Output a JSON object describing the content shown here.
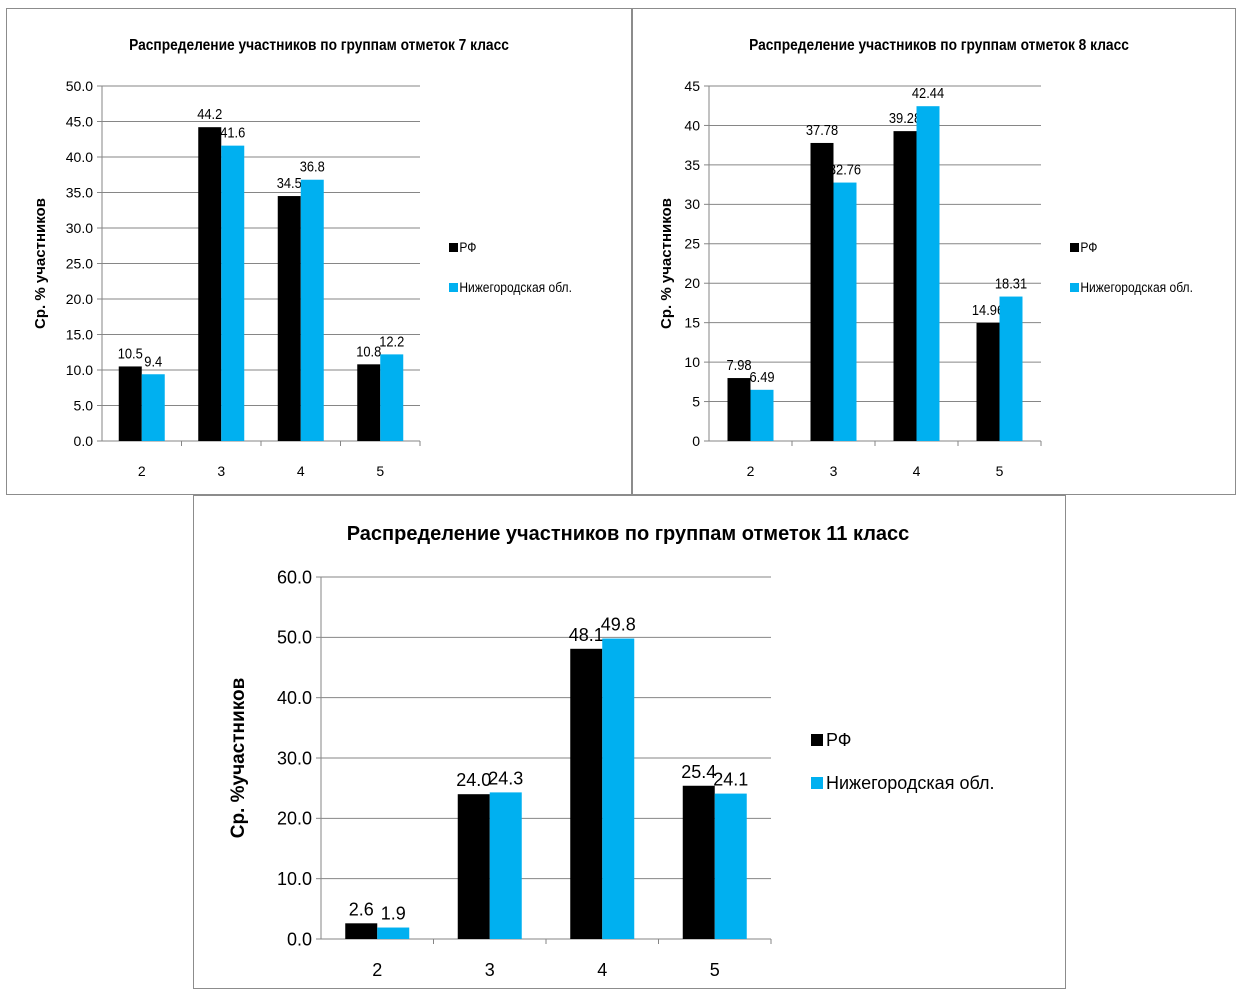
{
  "colors": {
    "rf": "#000000",
    "region": "#00b0f0",
    "grid": "#868686",
    "axis": "#868686"
  },
  "chart_data": [
    {
      "type": "bar",
      "title": "Распределение участников по группам отметок 7 класс",
      "ylabel": "Ср. % участников",
      "xlabel": "",
      "categories": [
        "2",
        "3",
        "4",
        "5"
      ],
      "ylim": [
        0,
        50
      ],
      "yticks": [
        "0.0",
        "5.0",
        "10.0",
        "15.0",
        "20.0",
        "25.0",
        "30.0",
        "35.0",
        "40.0",
        "45.0",
        "50.0"
      ],
      "ytick_values": [
        0,
        5,
        10,
        15,
        20,
        25,
        30,
        35,
        40,
        45,
        50
      ],
      "grid": true,
      "legend_position": "right",
      "series": [
        {
          "name": "РФ",
          "values": [
            10.5,
            44.2,
            34.5,
            10.8
          ],
          "labels": [
            "10.5",
            "44.2",
            "34.5",
            "10.8"
          ]
        },
        {
          "name": "Нижегородская обл.",
          "values": [
            9.4,
            41.6,
            36.8,
            12.2
          ],
          "labels": [
            "9.4",
            "41.6",
            "36.8",
            "12.2"
          ]
        }
      ]
    },
    {
      "type": "bar",
      "title": "Распределение участников по группам отметок 8 класс",
      "ylabel": "Ср. % участников",
      "xlabel": "",
      "categories": [
        "2",
        "3",
        "4",
        "5"
      ],
      "ylim": [
        0,
        45
      ],
      "yticks": [
        "0",
        "5",
        "10",
        "15",
        "20",
        "25",
        "30",
        "35",
        "40",
        "45"
      ],
      "ytick_values": [
        0,
        5,
        10,
        15,
        20,
        25,
        30,
        35,
        40,
        45
      ],
      "grid": true,
      "legend_position": "right",
      "series": [
        {
          "name": "РФ",
          "values": [
            7.98,
            37.78,
            39.28,
            14.96
          ],
          "labels": [
            "7.98",
            "37.78",
            "39.28",
            "14.96"
          ]
        },
        {
          "name": "Нижегородская обл.",
          "values": [
            6.49,
            32.76,
            42.44,
            18.31
          ],
          "labels": [
            "6.49",
            "32.76",
            "42.44",
            "18.31"
          ]
        }
      ]
    },
    {
      "type": "bar",
      "title": "Распределение участников по группам отметок  11 класс",
      "ylabel": "Ср. %участников",
      "xlabel": "",
      "categories": [
        "2",
        "3",
        "4",
        "5"
      ],
      "ylim": [
        0,
        60
      ],
      "yticks": [
        "0.0",
        "10.0",
        "20.0",
        "30.0",
        "40.0",
        "50.0",
        "60.0"
      ],
      "ytick_values": [
        0,
        10,
        20,
        30,
        40,
        50,
        60
      ],
      "grid": true,
      "legend_position": "right",
      "series": [
        {
          "name": "РФ",
          "values": [
            2.6,
            24.0,
            48.1,
            25.4
          ],
          "labels": [
            "2.6",
            "24.0",
            "48.1",
            "25.4"
          ]
        },
        {
          "name": "Нижегородская обл.",
          "values": [
            1.9,
            24.3,
            49.8,
            24.1
          ],
          "labels": [
            "1.9",
            "24.3",
            "49.8",
            "24.1"
          ]
        }
      ]
    }
  ]
}
